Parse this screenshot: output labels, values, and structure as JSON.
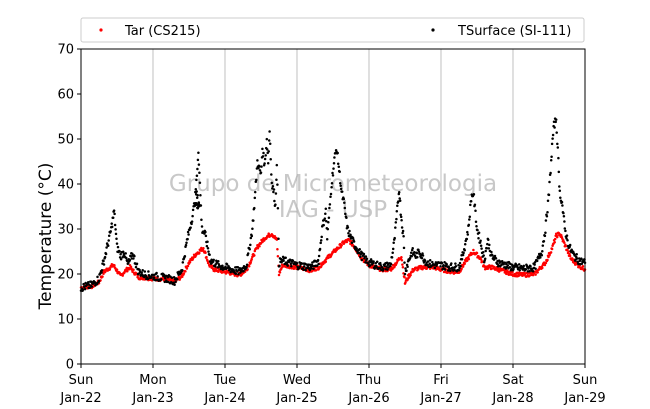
{
  "chart_data": {
    "type": "scatter",
    "title": "",
    "xlabel": "",
    "ylabel": "Temperature (°C)",
    "ylim": [
      0,
      70
    ],
    "yticks": [
      0,
      10,
      20,
      30,
      40,
      50,
      60,
      70
    ],
    "xlim": [
      "2017-01-22",
      "2017-01-29"
    ],
    "xticks": [
      {
        "day": "Sun",
        "date": "Jan-22"
      },
      {
        "day": "Mon",
        "date": "Jan-23"
      },
      {
        "day": "Tue",
        "date": "Jan-24"
      },
      {
        "day": "Wed",
        "date": "Jan-25"
      },
      {
        "day": "Thu",
        "date": "Jan-26"
      },
      {
        "day": "Fri",
        "date": "Jan-27"
      },
      {
        "day": "Sat",
        "date": "Jan-28"
      },
      {
        "day": "Sun",
        "date": "Jan-29"
      }
    ],
    "grid": "vertical",
    "legend_position": "top",
    "watermark": [
      "Grupo de Micrometeorologia",
      "IAG - USP"
    ],
    "series": [
      {
        "name": "Tar (CS215)",
        "color": "#ff0000",
        "marker": "dot",
        "points": [
          [
            0.0,
            17.0
          ],
          [
            0.15,
            17.3
          ],
          [
            0.25,
            18.2
          ],
          [
            0.32,
            20.5
          ],
          [
            0.45,
            22.0
          ],
          [
            0.55,
            19.5
          ],
          [
            0.6,
            20.5
          ],
          [
            0.68,
            21.5
          ],
          [
            0.8,
            19.3
          ],
          [
            1.0,
            19.0
          ],
          [
            1.2,
            18.8
          ],
          [
            1.3,
            18.3
          ],
          [
            1.4,
            19.5
          ],
          [
            1.5,
            22.5
          ],
          [
            1.6,
            24.5
          ],
          [
            1.7,
            25.8
          ],
          [
            1.78,
            22.0
          ],
          [
            1.85,
            21.0
          ],
          [
            2.0,
            20.5
          ],
          [
            2.2,
            19.8
          ],
          [
            2.3,
            21.0
          ],
          [
            2.45,
            26.0
          ],
          [
            2.55,
            28.0
          ],
          [
            2.65,
            29.0
          ],
          [
            2.72,
            27.5
          ],
          [
            2.75,
            20.0
          ],
          [
            2.8,
            22.0
          ],
          [
            3.0,
            21.5
          ],
          [
            3.2,
            20.8
          ],
          [
            3.3,
            21.5
          ],
          [
            3.45,
            24.0
          ],
          [
            3.55,
            25.5
          ],
          [
            3.65,
            27.0
          ],
          [
            3.72,
            27.5
          ],
          [
            3.8,
            26.0
          ],
          [
            3.9,
            23.5
          ],
          [
            4.0,
            22.0
          ],
          [
            4.1,
            21.3
          ],
          [
            4.2,
            21.0
          ],
          [
            4.3,
            21.0
          ],
          [
            4.38,
            22.5
          ],
          [
            4.45,
            24.0
          ],
          [
            4.5,
            18.0
          ],
          [
            4.55,
            19.5
          ],
          [
            4.62,
            21.0
          ],
          [
            4.75,
            21.5
          ],
          [
            4.9,
            21.5
          ],
          [
            5.0,
            21.0
          ],
          [
            5.15,
            20.5
          ],
          [
            5.25,
            20.5
          ],
          [
            5.35,
            23.0
          ],
          [
            5.45,
            25.0
          ],
          [
            5.55,
            23.5
          ],
          [
            5.6,
            21.5
          ],
          [
            5.7,
            21.5
          ],
          [
            5.8,
            21.0
          ],
          [
            5.9,
            20.5
          ],
          [
            6.0,
            20.0
          ],
          [
            6.15,
            19.8
          ],
          [
            6.3,
            20.0
          ],
          [
            6.45,
            22.5
          ],
          [
            6.55,
            26.0
          ],
          [
            6.6,
            28.5
          ],
          [
            6.65,
            29.0
          ],
          [
            6.72,
            26.5
          ],
          [
            6.8,
            23.5
          ],
          [
            6.9,
            22.0
          ],
          [
            7.0,
            21.0
          ]
        ]
      },
      {
        "name": "TSurface (SI-111)",
        "color": "#000000",
        "marker": "dot",
        "points": [
          [
            0.0,
            17.0
          ],
          [
            0.15,
            17.5
          ],
          [
            0.25,
            19.0
          ],
          [
            0.32,
            23.0
          ],
          [
            0.42,
            30.0
          ],
          [
            0.46,
            34.0
          ],
          [
            0.5,
            26.0
          ],
          [
            0.55,
            24.0
          ],
          [
            0.6,
            25.0
          ],
          [
            0.65,
            22.0
          ],
          [
            0.72,
            24.5
          ],
          [
            0.8,
            20.5
          ],
          [
            0.9,
            19.8
          ],
          [
            1.0,
            19.5
          ],
          [
            1.2,
            19.0
          ],
          [
            1.3,
            18.5
          ],
          [
            1.4,
            21.0
          ],
          [
            1.48,
            28.0
          ],
          [
            1.55,
            33.0
          ],
          [
            1.6,
            38.0
          ],
          [
            1.65,
            35.0
          ],
          [
            1.58,
            36.0
          ],
          [
            1.61,
            42.0
          ],
          [
            1.63,
            47.5
          ],
          [
            1.68,
            30.0
          ],
          [
            1.72,
            29.0
          ],
          [
            1.8,
            23.0
          ],
          [
            1.9,
            22.0
          ],
          [
            2.0,
            21.5
          ],
          [
            2.2,
            20.5
          ],
          [
            2.3,
            22.0
          ],
          [
            2.38,
            30.0
          ],
          [
            2.42,
            38.0
          ],
          [
            2.45,
            45.0
          ],
          [
            2.5,
            42.0
          ],
          [
            2.52,
            48.0
          ],
          [
            2.55,
            44.0
          ],
          [
            2.58,
            50.0
          ],
          [
            2.6,
            45.0
          ],
          [
            2.62,
            52.0
          ],
          [
            2.65,
            40.0
          ],
          [
            2.68,
            38.0
          ],
          [
            2.7,
            35.0
          ],
          [
            2.72,
            45.0
          ],
          [
            2.75,
            22.5
          ],
          [
            2.8,
            23.0
          ],
          [
            3.0,
            22.0
          ],
          [
            3.2,
            21.5
          ],
          [
            3.3,
            23.0
          ],
          [
            3.35,
            30.0
          ],
          [
            3.4,
            34.0
          ],
          [
            3.42,
            28.0
          ],
          [
            3.48,
            40.0
          ],
          [
            3.52,
            45.5
          ],
          [
            3.55,
            48.0
          ],
          [
            3.58,
            44.0
          ],
          [
            3.62,
            38.0
          ],
          [
            3.65,
            36.0
          ],
          [
            3.7,
            30.0
          ],
          [
            3.75,
            28.0
          ],
          [
            3.8,
            26.5
          ],
          [
            3.9,
            24.0
          ],
          [
            4.0,
            22.5
          ],
          [
            4.1,
            22.0
          ],
          [
            4.2,
            21.5
          ],
          [
            4.3,
            22.0
          ],
          [
            4.35,
            27.0
          ],
          [
            4.38,
            32.0
          ],
          [
            4.42,
            39.0
          ],
          [
            4.44,
            34.0
          ],
          [
            4.48,
            28.0
          ],
          [
            4.5,
            20.5
          ],
          [
            4.55,
            23.0
          ],
          [
            4.6,
            25.0
          ],
          [
            4.65,
            24.0
          ],
          [
            4.7,
            25.0
          ],
          [
            4.8,
            22.5
          ],
          [
            4.9,
            22.0
          ],
          [
            5.0,
            22.0
          ],
          [
            5.15,
            21.5
          ],
          [
            5.25,
            21.5
          ],
          [
            5.3,
            24.0
          ],
          [
            5.38,
            30.0
          ],
          [
            5.42,
            37.0
          ],
          [
            5.45,
            38.0
          ],
          [
            5.5,
            30.0
          ],
          [
            5.55,
            27.0
          ],
          [
            5.6,
            23.0
          ],
          [
            5.65,
            27.5
          ],
          [
            5.7,
            24.0
          ],
          [
            5.8,
            22.5
          ],
          [
            5.9,
            22.0
          ],
          [
            6.0,
            21.5
          ],
          [
            6.15,
            21.2
          ],
          [
            6.3,
            21.5
          ],
          [
            6.4,
            25.0
          ],
          [
            6.45,
            30.0
          ],
          [
            6.5,
            38.0
          ],
          [
            6.53,
            45.0
          ],
          [
            6.55,
            50.0
          ],
          [
            6.57,
            53.0
          ],
          [
            6.6,
            54.5
          ],
          [
            6.63,
            45.0
          ],
          [
            6.65,
            38.0
          ],
          [
            6.68,
            36.0
          ],
          [
            6.72,
            30.0
          ],
          [
            6.78,
            26.0
          ],
          [
            6.85,
            24.0
          ],
          [
            6.92,
            23.0
          ],
          [
            7.0,
            22.5
          ]
        ]
      }
    ]
  }
}
